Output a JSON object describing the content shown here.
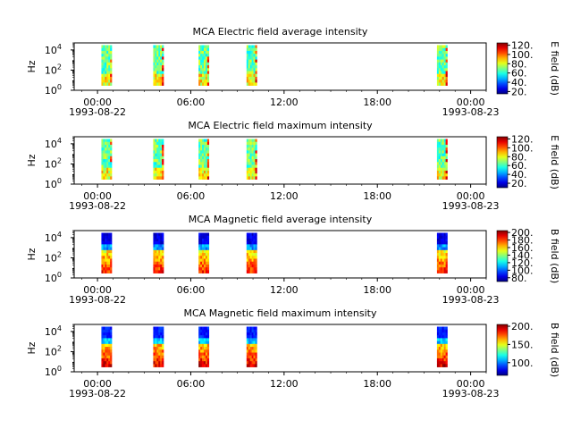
{
  "chart_data": [
    {
      "type": "heatmap",
      "title": "MCA  Electric field average intensity",
      "ylabel": "Hz",
      "colorbar_label": "E field (dB)",
      "yscale": "log",
      "ylim": [
        1,
        50000
      ],
      "y_ticks": [
        {
          "base": "10",
          "exp": "0"
        },
        {
          "base": "10",
          "exp": "2"
        },
        {
          "base": "10",
          "exp": "4"
        }
      ],
      "x_ticks": [
        "00:00",
        "06:00",
        "12:00",
        "18:00",
        "00:00"
      ],
      "x_date_labels": [
        "1993-08-22",
        "1993-08-23"
      ],
      "xlim_hours": [
        -1.5,
        25
      ],
      "zlim": [
        15,
        125
      ],
      "z_ticks": [
        "20.",
        "40.",
        "60.",
        "80.",
        "100.",
        "120."
      ],
      "colormap": "jet",
      "passes": [
        {
          "start": "1993-08-22T00:15",
          "end": "1993-08-22T00:55",
          "freq_range_hz": [
            3,
            30000
          ]
        },
        {
          "start": "1993-08-22T03:35",
          "end": "1993-08-22T04:15",
          "freq_range_hz": [
            3,
            30000
          ]
        },
        {
          "start": "1993-08-22T06:30",
          "end": "1993-08-22T07:10",
          "freq_range_hz": [
            3,
            30000
          ]
        },
        {
          "start": "1993-08-22T09:35",
          "end": "1993-08-22T10:15",
          "freq_range_hz": [
            3,
            30000
          ]
        },
        {
          "start": "1993-08-22T21:50",
          "end": "1993-08-22T22:30",
          "freq_range_hz": [
            3,
            30000
          ]
        }
      ]
    },
    {
      "type": "heatmap",
      "title": "MCA  Electric field maximum intensity",
      "ylabel": "Hz",
      "colorbar_label": "E field (dB)",
      "yscale": "log",
      "ylim": [
        1,
        50000
      ],
      "y_ticks": [
        {
          "base": "10",
          "exp": "0"
        },
        {
          "base": "10",
          "exp": "2"
        },
        {
          "base": "10",
          "exp": "4"
        }
      ],
      "x_ticks": [
        "00:00",
        "06:00",
        "12:00",
        "18:00",
        "00:00"
      ],
      "x_date_labels": [
        "1993-08-22",
        "1993-08-23"
      ],
      "xlim_hours": [
        -1.5,
        25
      ],
      "zlim": [
        10,
        125
      ],
      "z_ticks": [
        "20.",
        "40.",
        "60.",
        "80.",
        "100.",
        "120."
      ],
      "colormap": "jet",
      "passes": [
        {
          "start": "1993-08-22T00:15",
          "end": "1993-08-22T00:55",
          "freq_range_hz": [
            3,
            30000
          ]
        },
        {
          "start": "1993-08-22T03:35",
          "end": "1993-08-22T04:15",
          "freq_range_hz": [
            3,
            30000
          ]
        },
        {
          "start": "1993-08-22T06:30",
          "end": "1993-08-22T07:10",
          "freq_range_hz": [
            3,
            30000
          ]
        },
        {
          "start": "1993-08-22T09:35",
          "end": "1993-08-22T10:15",
          "freq_range_hz": [
            3,
            30000
          ]
        },
        {
          "start": "1993-08-22T21:50",
          "end": "1993-08-22T22:30",
          "freq_range_hz": [
            3,
            30000
          ]
        }
      ]
    },
    {
      "type": "heatmap",
      "title": "MCA  Magnetic field average intensity",
      "ylabel": "Hz",
      "colorbar_label": "B field (dB)",
      "yscale": "log",
      "ylim": [
        1,
        50000
      ],
      "y_ticks": [
        {
          "base": "10",
          "exp": "0"
        },
        {
          "base": "10",
          "exp": "2"
        },
        {
          "base": "10",
          "exp": "4"
        }
      ],
      "x_ticks": [
        "00:00",
        "06:00",
        "12:00",
        "18:00",
        "00:00"
      ],
      "x_date_labels": [
        "1993-08-22",
        "1993-08-23"
      ],
      "xlim_hours": [
        -1.5,
        25
      ],
      "zlim": [
        70,
        205
      ],
      "z_ticks": [
        "80.",
        "100.",
        "120.",
        "140.",
        "160.",
        "180.",
        "200."
      ],
      "colormap": "jet",
      "passes": [
        {
          "start": "1993-08-22T00:15",
          "end": "1993-08-22T00:55",
          "freq_range_hz": [
            3,
            30000
          ]
        },
        {
          "start": "1993-08-22T03:35",
          "end": "1993-08-22T04:15",
          "freq_range_hz": [
            3,
            30000
          ]
        },
        {
          "start": "1993-08-22T06:30",
          "end": "1993-08-22T07:10",
          "freq_range_hz": [
            3,
            30000
          ]
        },
        {
          "start": "1993-08-22T09:35",
          "end": "1993-08-22T10:15",
          "freq_range_hz": [
            3,
            30000
          ]
        },
        {
          "start": "1993-08-22T21:50",
          "end": "1993-08-22T22:30",
          "freq_range_hz": [
            3,
            30000
          ]
        }
      ]
    },
    {
      "type": "heatmap",
      "title": "MCA  Magnetic field maximum intensity",
      "ylabel": "Hz",
      "colorbar_label": "B field (dB)",
      "yscale": "log",
      "ylim": [
        1,
        50000
      ],
      "y_ticks": [
        {
          "base": "10",
          "exp": "0"
        },
        {
          "base": "10",
          "exp": "2"
        },
        {
          "base": "10",
          "exp": "4"
        }
      ],
      "x_ticks": [
        "00:00",
        "06:00",
        "12:00",
        "18:00",
        "00:00"
      ],
      "x_date_labels": [
        "1993-08-22",
        "1993-08-23"
      ],
      "xlim_hours": [
        -1.5,
        25
      ],
      "zlim": [
        65,
        205
      ],
      "z_ticks": [
        "100.",
        "150.",
        "200."
      ],
      "colormap": "jet",
      "passes": [
        {
          "start": "1993-08-22T00:15",
          "end": "1993-08-22T00:55",
          "freq_range_hz": [
            3,
            30000
          ]
        },
        {
          "start": "1993-08-22T03:35",
          "end": "1993-08-22T04:15",
          "freq_range_hz": [
            3,
            30000
          ]
        },
        {
          "start": "1993-08-22T06:30",
          "end": "1993-08-22T07:10",
          "freq_range_hz": [
            3,
            30000
          ]
        },
        {
          "start": "1993-08-22T09:35",
          "end": "1993-08-22T10:15",
          "freq_range_hz": [
            3,
            30000
          ]
        },
        {
          "start": "1993-08-22T21:50",
          "end": "1993-08-22T22:30",
          "freq_range_hz": [
            3,
            30000
          ]
        }
      ]
    }
  ]
}
